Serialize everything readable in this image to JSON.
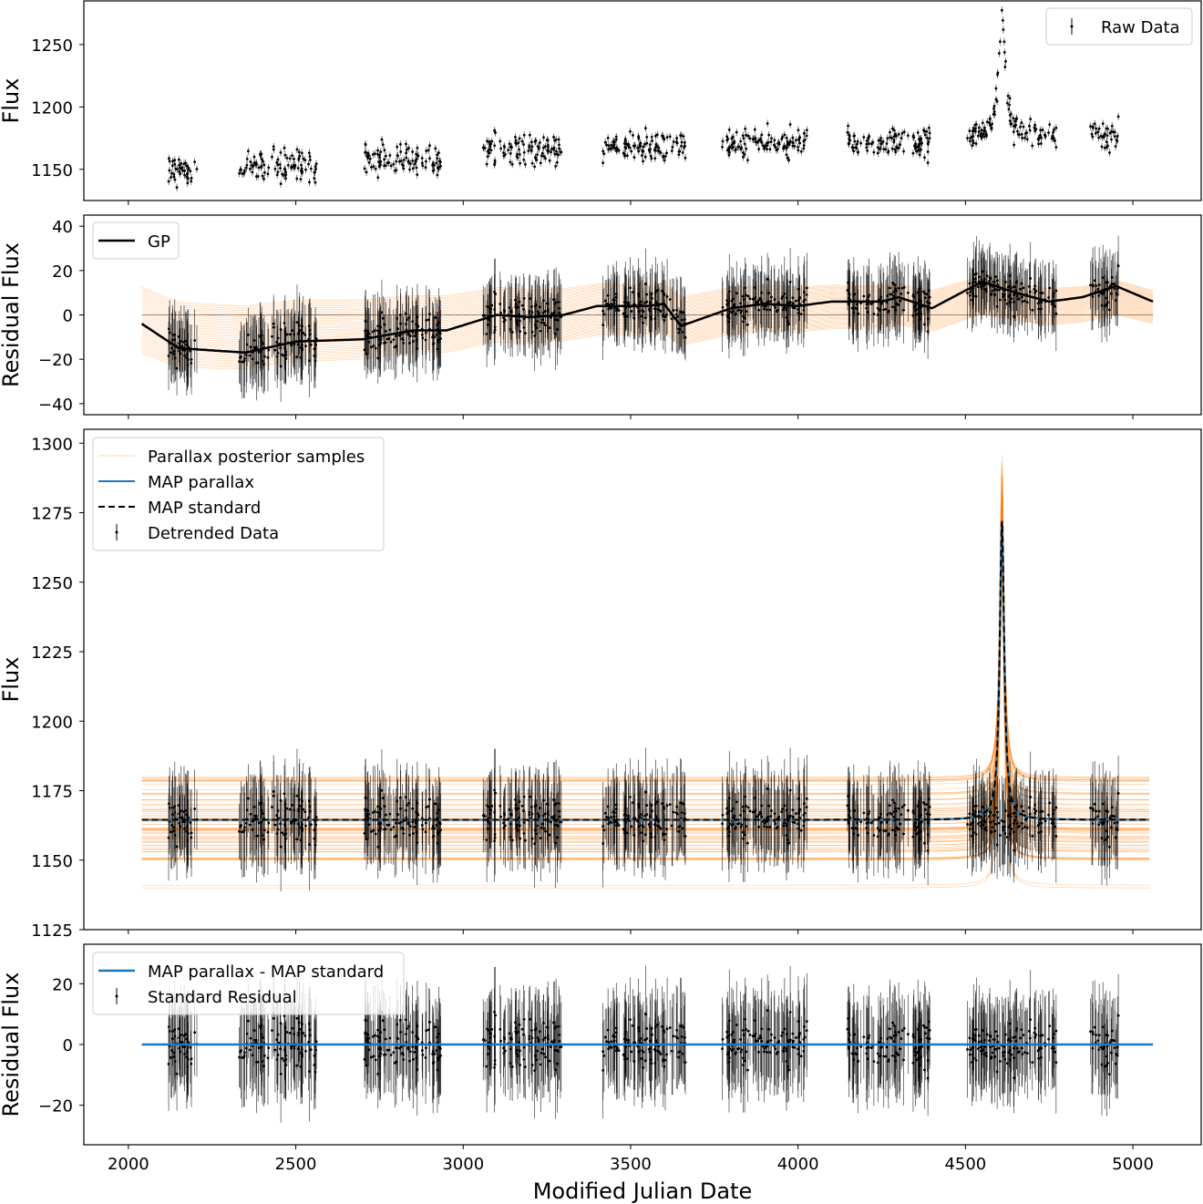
{
  "chart_data": [
    {
      "type": "scatter",
      "ylabel": "Flux",
      "ylim": [
        1125,
        1285
      ],
      "yticks": [
        1150,
        1200,
        1250
      ],
      "legend": {
        "placement": "top-right",
        "entries": [
          "Raw Data"
        ]
      },
      "seasons": [
        {
          "mjd": [
            2112,
            2207
          ],
          "mean_flux": 1150
        },
        {
          "mjd": [
            2330,
            2564
          ],
          "mean_flux": 1153
        },
        {
          "mjd": [
            2705,
            2937
          ],
          "mean_flux": 1158
        },
        {
          "mjd": [
            3051,
            3294
          ],
          "mean_flux": 1165
        },
        {
          "mjd": [
            3413,
            3669
          ],
          "mean_flux": 1168
        },
        {
          "mjd": [
            3773,
            4029
          ],
          "mean_flux": 1170
        },
        {
          "mjd": [
            4146,
            4399
          ],
          "mean_flux": 1172
        },
        {
          "mjd": [
            4505,
            4778
          ],
          "mean_flux": 1176
        },
        {
          "mjd": [
            4873,
            4957
          ],
          "mean_flux": 1178
        }
      ],
      "peak": {
        "mjd": 4609,
        "flux": 1278
      }
    },
    {
      "type": "line",
      "ylabel": "Residual Flux",
      "ylim": [
        -45,
        45
      ],
      "yticks": [
        -40,
        -20,
        0,
        20,
        40
      ],
      "legend": {
        "placement": "top-left",
        "entries": [
          "GP"
        ]
      },
      "gp_curve": {
        "x": [
          2040,
          2150,
          2250,
          2350,
          2500,
          2700,
          2850,
          2950,
          3100,
          3200,
          3300,
          3400,
          3550,
          3600,
          3650,
          3800,
          3900,
          4000,
          4100,
          4250,
          4300,
          4400,
          4550,
          4650,
          4750,
          4850,
          4950,
          5060
        ],
        "y": [
          -4,
          -15,
          -16,
          -17,
          -12,
          -11,
          -7,
          -7,
          0,
          -1,
          0,
          4,
          4,
          5,
          -5,
          3,
          5,
          4,
          6,
          6,
          8,
          3,
          15,
          10,
          6,
          8,
          13,
          6
        ]
      }
    },
    {
      "type": "line",
      "ylabel": "Flux",
      "ylim": [
        1125,
        1305
      ],
      "yticks": [
        1125,
        1150,
        1175,
        1200,
        1225,
        1250,
        1275,
        1300
      ],
      "legend": {
        "placement": "top-left",
        "entries": [
          "Parallax posterior samples",
          "MAP parallax",
          "MAP standard",
          "Detrended Data"
        ]
      },
      "baseline_flux": 1164.5,
      "posterior_baseline_range": [
        1140,
        1190
      ],
      "peak": {
        "mjd": 4609,
        "flux": 1272
      }
    },
    {
      "type": "scatter",
      "ylabel": "Residual Flux",
      "xlabel": "Modified Julian Date",
      "ylim": [
        -33,
        33
      ],
      "yticks": [
        -20,
        0,
        20
      ],
      "legend": {
        "placement": "top-left",
        "entries": [
          "MAP parallax - MAP standard",
          "Standard Residual"
        ]
      }
    }
  ],
  "xaxis": {
    "label": "Modified Julian Date",
    "xlim": [
      1867,
      5204
    ],
    "ticks": [
      2000,
      2500,
      3000,
      3500,
      4000,
      4500,
      5000
    ]
  },
  "colors": {
    "orange": "#ff7f0e",
    "blue": "#1f77b4",
    "black": "#000000"
  }
}
